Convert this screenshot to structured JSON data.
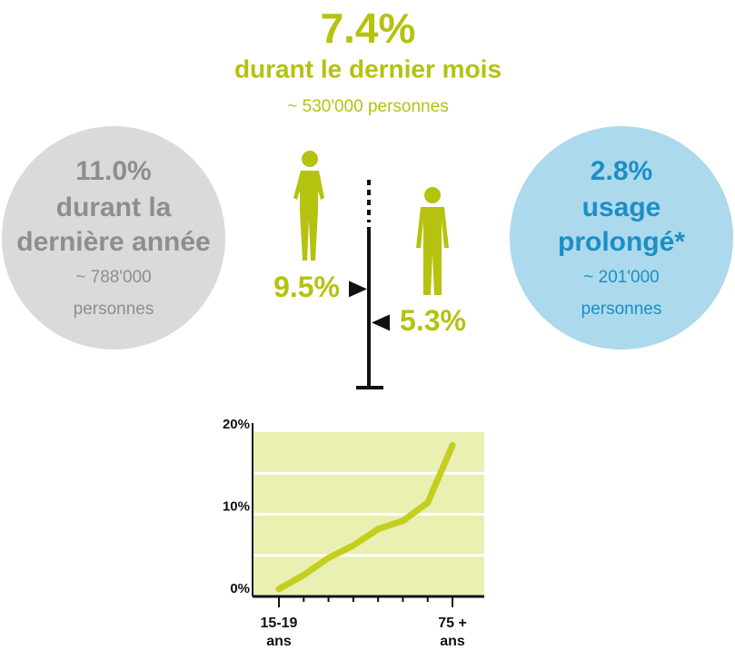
{
  "headline": {
    "rate": "7.4%",
    "period": "durant le dernier mois",
    "people": "~ 530'000 personnes"
  },
  "left_circle": {
    "lines": [
      "11.0%",
      "durant la",
      "dernière année",
      "~ 788'000",
      "personnes"
    ]
  },
  "right_circle": {
    "lines": [
      "2.8%",
      "usage",
      "prolongé*",
      "~ 201'000",
      "personnes"
    ]
  },
  "gender": {
    "women": {
      "value": 9.5,
      "label": "9.5%"
    },
    "men": {
      "value": 5.3,
      "label": "5.3%"
    }
  },
  "chart_data": {
    "type": "line",
    "categories": [
      "15-19 ans",
      null,
      null,
      null,
      null,
      null,
      null,
      "75 + ans"
    ],
    "values": [
      0.9,
      2.6,
      4.7,
      6.2,
      8.2,
      9.2,
      11.4,
      18.4
    ],
    "color": "#c3cf1c",
    "background": "#eaf0b2",
    "ylim": [
      0,
      20
    ],
    "yticks": [
      {
        "value": 0,
        "label": "0%"
      },
      {
        "value": 10,
        "label": "10%"
      },
      {
        "value": 20,
        "label": "20%"
      }
    ],
    "minor_grid": [
      5,
      15
    ],
    "grid": true
  }
}
